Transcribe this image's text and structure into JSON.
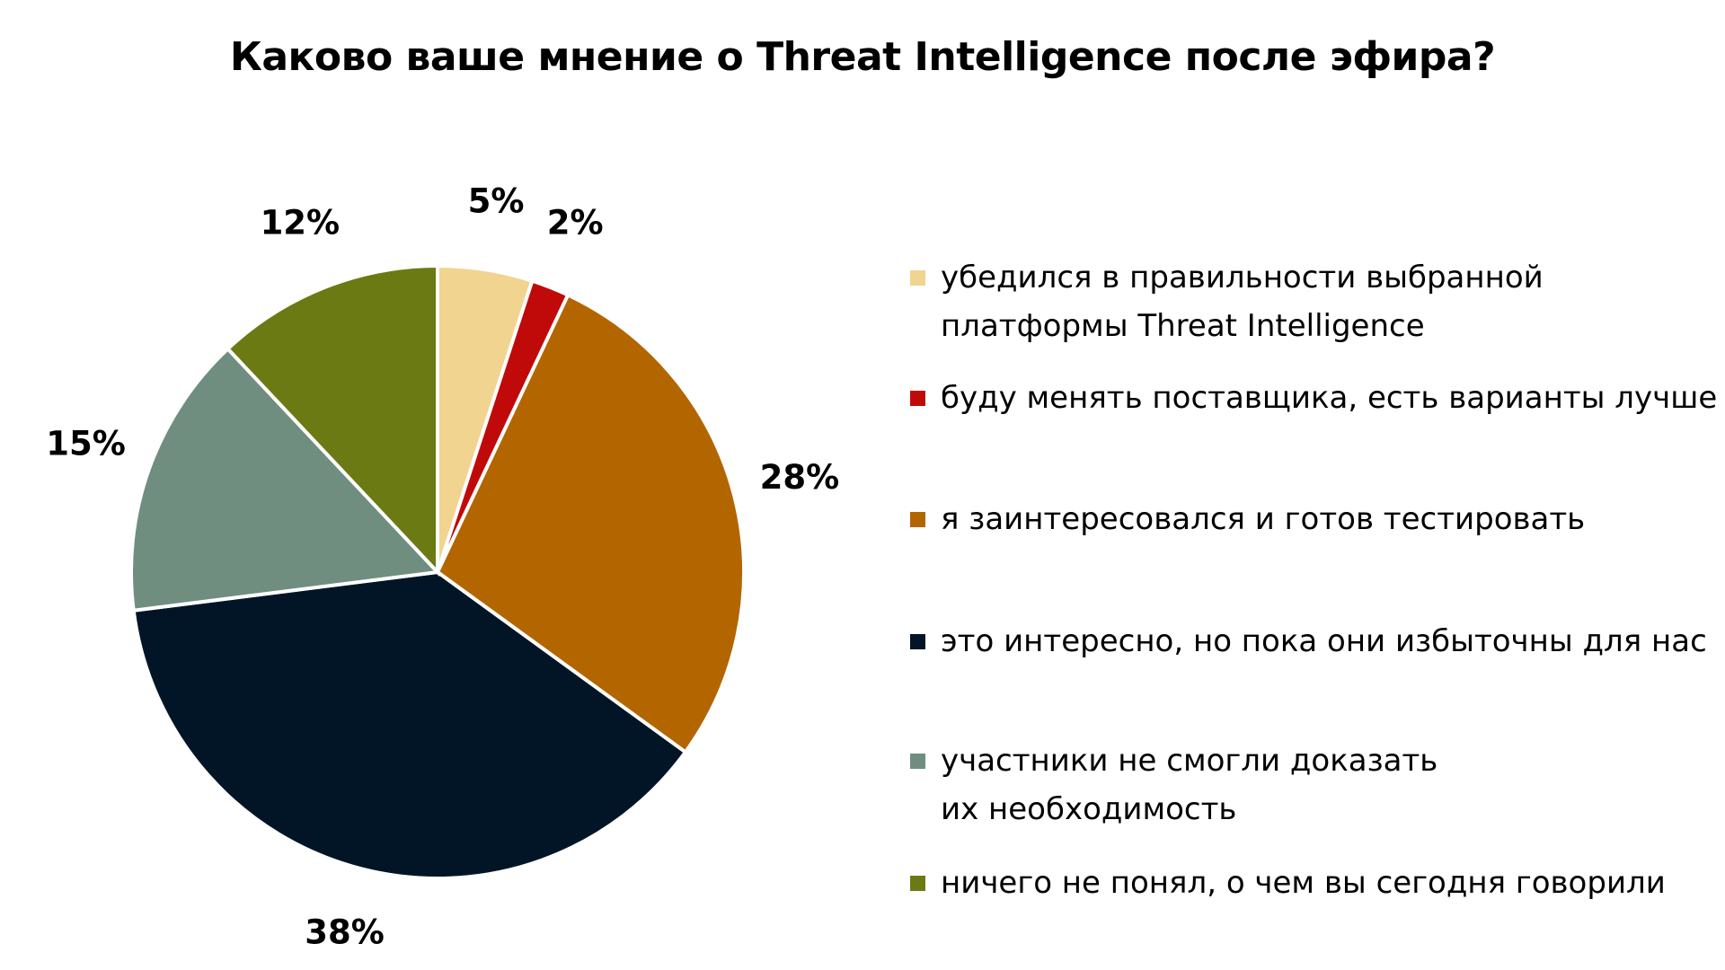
{
  "chart_data": {
    "type": "pie",
    "title": "Каково ваше мнение о Threat Intelligence после эфира?",
    "start": "top",
    "direction": "clockwise",
    "legend_position": "right",
    "slices": [
      {
        "label": "убедился в правильности выбранной платформы Threat Intelligence",
        "lines": [
          "убедился в правильности выбранной",
          "платформы Threat Intelligence"
        ],
        "value": 5,
        "value_label": "5%",
        "color": "#F2D491"
      },
      {
        "label": "буду менять поставщика, есть варианты лучше",
        "lines": [
          "буду менять поставщика, есть варианты лучше"
        ],
        "value": 2,
        "value_label": "2%",
        "color": "#C00A0A"
      },
      {
        "label": "я заинтересовался и готов тестировать",
        "lines": [
          "я заинтересовался и готов тестировать"
        ],
        "value": 28,
        "value_label": "28%",
        "color": "#B36600"
      },
      {
        "label": "это интересно, но пока они избыточны для нас",
        "lines": [
          "это интересно, но пока они избыточны для нас"
        ],
        "value": 38,
        "value_label": "38%",
        "color": "#021527"
      },
      {
        "label": "участники не смогли доказать их необходимость",
        "lines": [
          "участники не смогли доказать",
          "их необходимость"
        ],
        "value": 15,
        "value_label": "15%",
        "color": "#6F8E80"
      },
      {
        "label": "ничего не понял, о чем вы сегодня говорили",
        "lines": [
          "ничего не понял, о чем вы сегодня говорили"
        ],
        "value": 12,
        "value_label": "12%",
        "color": "#6B7A13"
      }
    ]
  }
}
